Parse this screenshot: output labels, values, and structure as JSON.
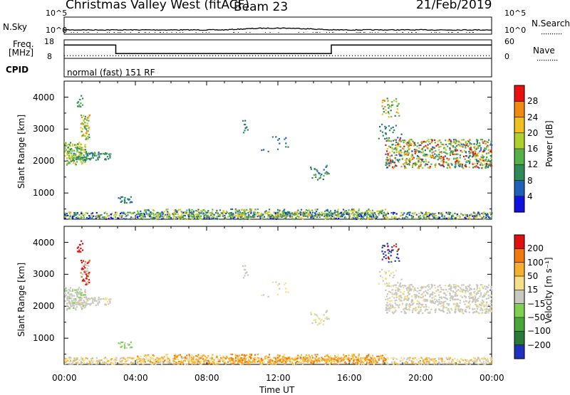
{
  "header": {
    "title": "Christmas Valley West (fitACF)",
    "beam": "Beam 23",
    "date": "21/Feb/2019"
  },
  "panels": {
    "nsky_label": "N.Sky",
    "nsearch_label": "N.Search",
    "freq_label_1": "Freq.",
    "freq_label_2": "[MHz]",
    "nave_label": "Nave",
    "cpid_label": "CPID",
    "cpid_text": "normal (fast) 151 RF"
  },
  "chart_data": [
    {
      "type": "line",
      "name": "noise",
      "left_ticks": [
        "10^5",
        "10^0"
      ],
      "right_ticks": [
        "10^5",
        "10^0"
      ],
      "left_label": "N.Sky",
      "right_label": "N.Search"
    },
    {
      "type": "line",
      "name": "frequency",
      "left_ticks": [
        "18",
        "8"
      ],
      "right_ticks": [
        "60",
        "0"
      ],
      "ylim_left": [
        8,
        18
      ],
      "ylim_right": [
        0,
        60
      ],
      "freq_steps": [
        {
          "x": [
            0.0,
            2.9
          ],
          "y": 15.2
        },
        {
          "x": [
            2.9,
            15.0
          ],
          "y": 10.6
        },
        {
          "x": [
            15.0,
            24.0
          ],
          "y": 15.2
        }
      ],
      "nave_level": 10
    },
    {
      "type": "heatmap",
      "name": "power",
      "ylabel": "Slant Range [km]",
      "ylim": [
        180,
        4500
      ],
      "y_ticks": [
        "4000",
        "3000",
        "2000",
        "1000"
      ],
      "colorbar_label": "Power [dB]",
      "colorbar_ticks": [
        "28",
        "24",
        "20",
        "16",
        "12",
        "8",
        "4"
      ],
      "colors": [
        "#1010e0",
        "#2060b8",
        "#2e8b57",
        "#55b04a",
        "#b0d030",
        "#f0c020",
        "#f08a10",
        "#e81010"
      ]
    },
    {
      "type": "heatmap",
      "name": "velocity",
      "ylabel": "Slant Range [km]",
      "ylim": [
        180,
        4500
      ],
      "y_ticks": [
        "4000",
        "3000",
        "2000",
        "1000"
      ],
      "xlabel": "Time UT",
      "x_ticks": [
        "00:00",
        "04:00",
        "08:00",
        "12:00",
        "16:00",
        "20:00",
        "00:00"
      ],
      "colorbar_label": "Velocity [m s⁻¹]",
      "colorbar_ticks": [
        "200",
        "100",
        "50",
        "15",
        "−15",
        "−50",
        "−100",
        "−200"
      ],
      "colors": [
        "#2030c0",
        "#2a7a3a",
        "#4aa63a",
        "#80d050",
        "#c8c8c0",
        "#f5e08a",
        "#f5b030",
        "#f07a10",
        "#e01010"
      ]
    }
  ]
}
